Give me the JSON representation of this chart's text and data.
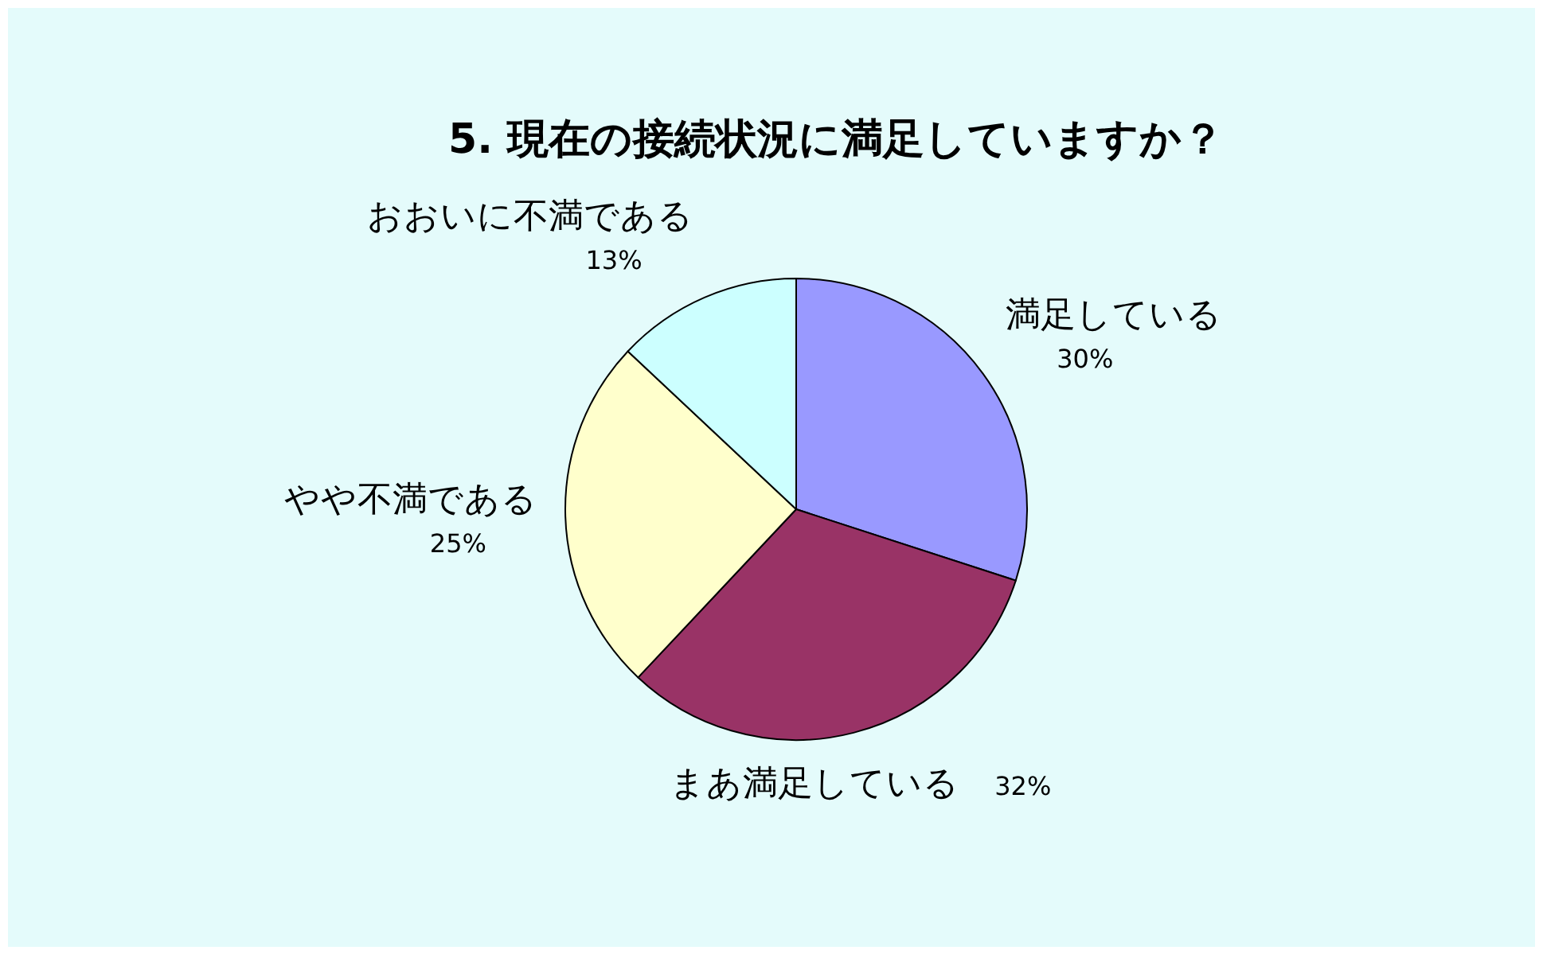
{
  "chart_data": {
    "type": "pie",
    "title": "5. 現在の接続状況に満足していますか？",
    "categories": [
      "満足している",
      "まあ満足している",
      "やや不満である",
      "おおいに不満である"
    ],
    "values": [
      30,
      32,
      25,
      13
    ],
    "colors": [
      "#9999ff",
      "#993366",
      "#ffffcc",
      "#ccffff"
    ],
    "value_labels": [
      "30%",
      "32%",
      "25%",
      "13%"
    ]
  }
}
